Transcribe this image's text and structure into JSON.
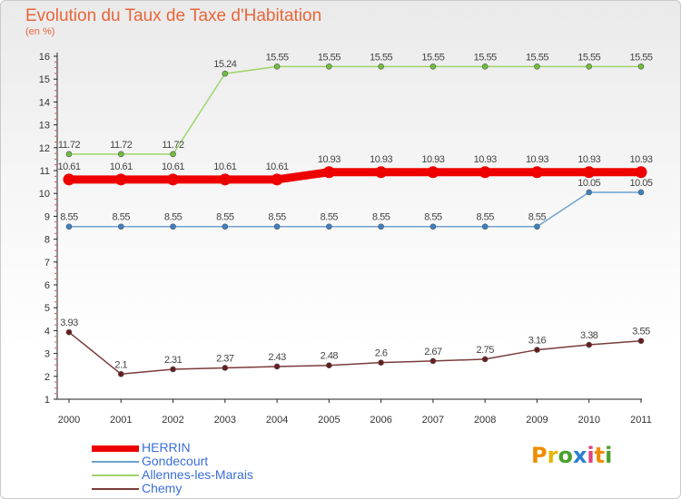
{
  "title": "Evolution du Taux de Taxe d'Habitation",
  "subtitle": "(en %)",
  "logo": {
    "text": "Proxiti",
    "colors": [
      "#f08c00",
      "#e8b400",
      "#4aa02c",
      "#2a7fd4",
      "#e04080",
      "#f08c00",
      "#4aa02c"
    ]
  },
  "chart_data": {
    "type": "line",
    "x": [
      "2000",
      "2001",
      "2002",
      "2003",
      "2004",
      "2005",
      "2006",
      "2007",
      "2008",
      "2009",
      "2010",
      "2011"
    ],
    "ylim": [
      1,
      16
    ],
    "yticks": [
      "1",
      "2",
      "3",
      "4",
      "5",
      "6",
      "7",
      "8",
      "9",
      "10",
      "11",
      "12",
      "13",
      "14",
      "15",
      "16"
    ],
    "grid": false,
    "legend_position": "bottom-left",
    "series": [
      {
        "name": "HERRIN",
        "color": "#ee0000",
        "width": 9,
        "values": [
          10.61,
          10.61,
          10.61,
          10.61,
          10.61,
          10.93,
          10.93,
          10.93,
          10.93,
          10.93,
          10.93,
          10.93
        ],
        "labels": [
          "10.61",
          "10.61",
          "10.61",
          "10.61",
          "10.61",
          "10.93",
          "10.93",
          "10.93",
          "10.93",
          "10.93",
          "10.93",
          "10.93"
        ]
      },
      {
        "name": "Gondecourt",
        "color": "#6fa2cf",
        "marker": "#3b82c4",
        "width": 1.5,
        "values": [
          8.55,
          8.55,
          8.55,
          8.55,
          8.55,
          8.55,
          8.55,
          8.55,
          8.55,
          8.55,
          10.05,
          10.05
        ],
        "labels": [
          "8.55",
          "8.55",
          "8.55",
          "8.55",
          "8.55",
          "8.55",
          "8.55",
          "8.55",
          "8.55",
          "8.55",
          "10.05",
          "10.05"
        ]
      },
      {
        "name": "Allennes-les-Marais",
        "color": "#9ed46c",
        "marker": "#6cbf3c",
        "width": 1.5,
        "values": [
          11.72,
          11.72,
          11.72,
          15.24,
          15.55,
          15.55,
          15.55,
          15.55,
          15.55,
          15.55,
          15.55,
          15.55
        ],
        "labels": [
          "11.72",
          "11.72",
          "11.72",
          "15.24",
          "15.55",
          "15.55",
          "15.55",
          "15.55",
          "15.55",
          "15.55",
          "15.55",
          "15.55"
        ]
      },
      {
        "name": "Chemy",
        "color": "#7a3b3b",
        "marker": "#6a1c1c",
        "width": 1.5,
        "values": [
          3.93,
          2.1,
          2.31,
          2.37,
          2.43,
          2.48,
          2.6,
          2.67,
          2.75,
          3.16,
          3.38,
          3.55
        ],
        "labels": [
          "3.93",
          "2.1",
          "2.31",
          "2.37",
          "2.43",
          "2.48",
          "2.6",
          "2.67",
          "2.75",
          "3.16",
          "3.38",
          "3.55"
        ]
      }
    ]
  }
}
